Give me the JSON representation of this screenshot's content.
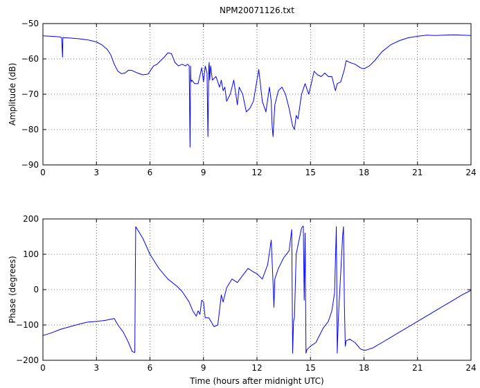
{
  "chart_data": [
    {
      "type": "line",
      "title": "NPM20071126.txt",
      "xlabel": "",
      "ylabel": "Amplitude (dB)",
      "xlim": [
        0,
        24
      ],
      "ylim": [
        -90,
        -50
      ],
      "x_ticks": [
        "0",
        "3",
        "6",
        "9",
        "12",
        "15",
        "18",
        "21",
        "24"
      ],
      "y_ticks": [
        "-90",
        "-80",
        "-70",
        "-60",
        "-50"
      ],
      "grid": true,
      "series": [
        {
          "color": "#0000ff",
          "x": [
            0,
            0.5,
            1.0,
            1.05,
            1.1,
            1.12,
            1.15,
            1.2,
            1.5,
            2.0,
            2.5,
            3.0,
            3.3,
            3.6,
            3.8,
            4.0,
            4.2,
            4.4,
            4.6,
            4.8,
            5.0,
            5.3,
            5.6,
            5.9,
            6.0,
            6.2,
            6.4,
            6.6,
            6.8,
            7.0,
            7.2,
            7.4,
            7.6,
            7.8,
            8.0,
            8.1,
            8.2,
            8.25,
            8.28,
            8.3,
            8.35,
            8.5,
            8.7,
            8.9,
            9.0,
            9.1,
            9.2,
            9.25,
            9.3,
            9.32,
            9.35,
            9.4,
            9.5,
            9.7,
            9.9,
            10.0,
            10.1,
            10.2,
            10.3,
            10.5,
            10.7,
            10.9,
            11.0,
            11.2,
            11.4,
            11.6,
            11.8,
            12.0,
            12.1,
            12.3,
            12.5,
            12.7,
            12.8,
            12.85,
            12.9,
            13.0,
            13.2,
            13.4,
            13.6,
            13.8,
            14.0,
            14.1,
            14.2,
            14.3,
            14.5,
            14.7,
            14.9,
            15.0,
            15.2,
            15.4,
            15.6,
            15.8,
            16.0,
            16.2,
            16.4,
            16.5,
            16.7,
            16.9,
            17.0,
            17.2,
            17.5,
            17.8,
            18.0,
            18.3,
            18.6,
            19.0,
            19.5,
            20.0,
            20.5,
            21.0,
            21.5,
            22.0,
            22.5,
            23.0,
            23.5,
            24.0
          ],
          "y": [
            -53.5,
            -53.6,
            -53.8,
            -54.2,
            -59.5,
            -53.9,
            -54.0,
            -54.0,
            -54.1,
            -54.3,
            -54.6,
            -55.2,
            -56.0,
            -57.3,
            -58.8,
            -61.5,
            -63.5,
            -64.2,
            -64.0,
            -63.2,
            -63.3,
            -64.0,
            -64.5,
            -64.3,
            -63.5,
            -62.0,
            -61.5,
            -60.5,
            -59.5,
            -58.3,
            -58.5,
            -61.0,
            -62.0,
            -61.5,
            -62.0,
            -61.5,
            -62.0,
            -85.0,
            -62.0,
            -66.5,
            -66.0,
            -67.0,
            -67.0,
            -62.5,
            -66.5,
            -62.0,
            -64.0,
            -82.0,
            -62.0,
            -61.0,
            -66.0,
            -62.0,
            -66.0,
            -65.0,
            -68.0,
            -66.0,
            -69.0,
            -68.0,
            -72.0,
            -70.0,
            -66.0,
            -73.0,
            -68.0,
            -70.0,
            -75.0,
            -74.0,
            -72.0,
            -66.0,
            -63.0,
            -72.0,
            -75.0,
            -68.0,
            -72.0,
            -79.0,
            -82.0,
            -73.0,
            -69.0,
            -68.0,
            -70.0,
            -74.0,
            -79.0,
            -80.0,
            -76.0,
            -77.0,
            -70.0,
            -67.0,
            -70.0,
            -68.0,
            -63.5,
            -64.5,
            -65.0,
            -64.0,
            -65.0,
            -65.0,
            -69.0,
            -67.0,
            -66.5,
            -63.0,
            -60.5,
            -61.0,
            -61.5,
            -62.5,
            -62.8,
            -62.0,
            -60.5,
            -58.0,
            -56.0,
            -54.8,
            -54.0,
            -53.6,
            -53.3,
            -53.4,
            -53.3,
            -53.2,
            -53.3,
            -53.4
          ]
        }
      ]
    },
    {
      "type": "line",
      "title": "",
      "xlabel": "Time (hours after midnight UTC)",
      "ylabel": "Phase (degrees)",
      "xlim": [
        0,
        24
      ],
      "ylim": [
        -200,
        200
      ],
      "x_ticks": [
        "0",
        "3",
        "6",
        "9",
        "12",
        "15",
        "18",
        "21",
        "24"
      ],
      "y_ticks": [
        "-200",
        "-100",
        "0",
        "100",
        "200"
      ],
      "grid": true,
      "series": [
        {
          "color": "#0000ff",
          "x": [
            0,
            0.5,
            1.0,
            1.5,
            2.0,
            2.5,
            3.0,
            3.5,
            3.8,
            4.0,
            4.2,
            4.5,
            4.8,
            5.0,
            5.15,
            5.2,
            5.3,
            5.6,
            6.0,
            6.5,
            7.0,
            7.5,
            7.8,
            8.0,
            8.2,
            8.4,
            8.6,
            8.7,
            8.8,
            8.9,
            9.0,
            9.1,
            9.3,
            9.6,
            9.8,
            9.9,
            10.0,
            10.1,
            10.3,
            10.6,
            10.9,
            11.2,
            11.5,
            11.8,
            12.0,
            12.3,
            12.6,
            12.8,
            12.9,
            12.95,
            13.0,
            13.2,
            13.5,
            13.8,
            13.95,
            14.0,
            14.05,
            14.1,
            14.2,
            14.4,
            14.5,
            14.6,
            14.65,
            14.7,
            14.75,
            14.8,
            15.0,
            15.3,
            15.7,
            16.0,
            16.2,
            16.35,
            16.45,
            16.5,
            16.55,
            16.6,
            16.7,
            16.8,
            16.85,
            16.9,
            16.95,
            17.0,
            17.2,
            17.5,
            17.8,
            18.0,
            18.2,
            18.5,
            19.0,
            19.5,
            20.0,
            20.5,
            21.0,
            21.5,
            22.0,
            22.5,
            23.0,
            23.5,
            24.0
          ],
          "y": [
            -130,
            -122,
            -112,
            -105,
            -98,
            -92,
            -90,
            -87,
            -84,
            -82,
            -100,
            -120,
            -150,
            -175,
            -178,
            178,
            170,
            145,
            100,
            60,
            30,
            10,
            -5,
            -20,
            -35,
            -60,
            -75,
            -60,
            -70,
            -30,
            -35,
            -80,
            -80,
            -105,
            -100,
            -60,
            -15,
            -35,
            5,
            30,
            20,
            40,
            60,
            50,
            45,
            30,
            70,
            140,
            20,
            -50,
            30,
            60,
            90,
            110,
            170,
            -180,
            -90,
            -80,
            100,
            150,
            175,
            180,
            -30,
            160,
            -180,
            -170,
            -160,
            -150,
            -110,
            -90,
            -60,
            -10,
            178,
            -180,
            -100,
            -40,
            50,
            150,
            178,
            -40,
            -160,
            -145,
            -140,
            -150,
            -168,
            -172,
            -170,
            -165,
            -150,
            -135,
            -120,
            -105,
            -90,
            -75,
            -60,
            -45,
            -30,
            -15,
            -2
          ]
        }
      ]
    }
  ]
}
